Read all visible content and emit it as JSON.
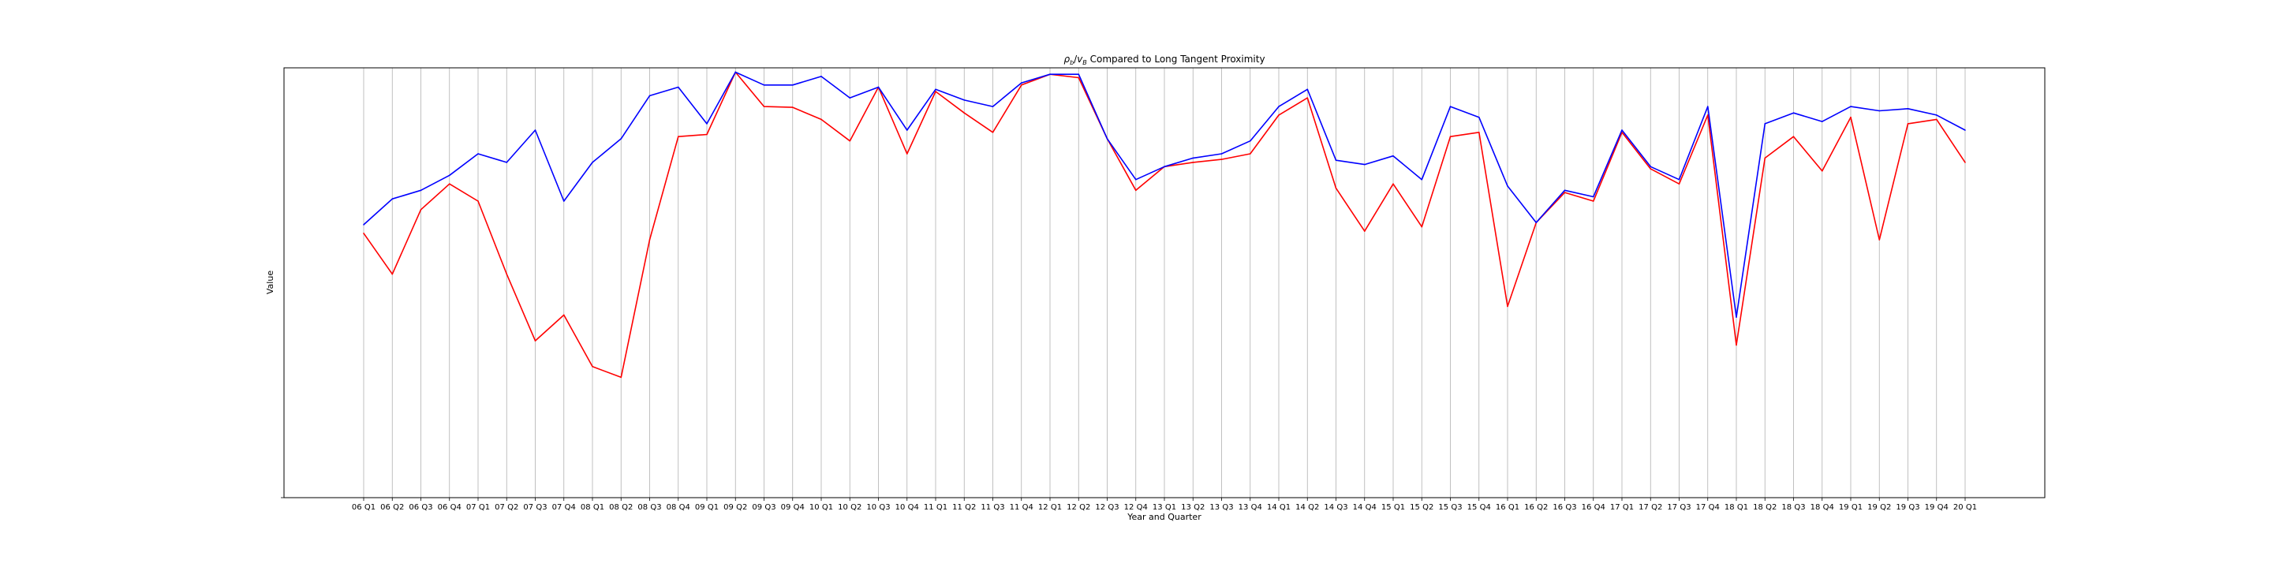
{
  "chart_data": {
    "type": "line",
    "title": "ρ_b/v_b Compared to Long Tangent Proximity",
    "title_parts": {
      "rho": "ρ",
      "rho_sub": "b",
      "slash": "/",
      "v": "v",
      "v_sub": "B",
      "rest": " Compared to Long Tangent Proximity"
    },
    "xlabel": "Year and Quarter",
    "ylabel": "Value",
    "grid": "vertical",
    "legend": "none",
    "y_tick_labels": "hidden",
    "ylim": [
      0,
      1
    ],
    "categories": [
      "06 Q1",
      "06 Q2",
      "06 Q3",
      "06 Q4",
      "07 Q1",
      "07 Q2",
      "07 Q3",
      "07 Q4",
      "08 Q1",
      "08 Q2",
      "08 Q3",
      "08 Q4",
      "09 Q1",
      "09 Q2",
      "09 Q3",
      "09 Q4",
      "10 Q1",
      "10 Q2",
      "10 Q3",
      "10 Q4",
      "11 Q1",
      "11 Q2",
      "11 Q3",
      "11 Q4",
      "12 Q1",
      "12 Q2",
      "12 Q3",
      "12 Q4",
      "13 Q1",
      "13 Q2",
      "13 Q3",
      "13 Q4",
      "14 Q1",
      "14 Q2",
      "14 Q3",
      "14 Q4",
      "15 Q1",
      "15 Q2",
      "15 Q3",
      "15 Q4",
      "16 Q1",
      "16 Q2",
      "16 Q3",
      "16 Q4",
      "17 Q1",
      "17 Q2",
      "17 Q3",
      "17 Q4",
      "18 Q1",
      "18 Q2",
      "18 Q3",
      "18 Q4",
      "19 Q1",
      "19 Q2",
      "19 Q3",
      "19 Q4",
      "20 Q1"
    ],
    "series": [
      {
        "color": "#ff0000",
        "values": [
          0.615,
          0.52,
          0.67,
          0.73,
          0.69,
          0.52,
          0.365,
          0.425,
          0.305,
          0.28,
          0.6,
          0.84,
          0.845,
          0.99,
          0.91,
          0.908,
          0.88,
          0.83,
          0.955,
          0.8,
          0.945,
          0.895,
          0.85,
          0.96,
          0.985,
          0.977,
          0.835,
          0.715,
          0.77,
          0.78,
          0.787,
          0.8,
          0.89,
          0.93,
          0.72,
          0.62,
          0.73,
          0.63,
          0.84,
          0.85,
          0.445,
          0.64,
          0.71,
          0.69,
          0.85,
          0.765,
          0.73,
          0.89,
          0.355,
          0.79,
          0.84,
          0.76,
          0.885,
          0.6,
          0.87,
          0.88,
          0.78
        ]
      },
      {
        "color": "#0000ff",
        "values": [
          0.635,
          0.695,
          0.715,
          0.75,
          0.8,
          0.78,
          0.855,
          0.69,
          0.78,
          0.835,
          0.935,
          0.955,
          0.87,
          0.99,
          0.96,
          0.96,
          0.98,
          0.93,
          0.955,
          0.855,
          0.95,
          0.925,
          0.91,
          0.965,
          0.985,
          0.985,
          0.835,
          0.74,
          0.77,
          0.79,
          0.8,
          0.83,
          0.91,
          0.95,
          0.785,
          0.775,
          0.795,
          0.74,
          0.91,
          0.885,
          0.725,
          0.64,
          0.715,
          0.7,
          0.855,
          0.77,
          0.74,
          0.91,
          0.42,
          0.87,
          0.895,
          0.875,
          0.91,
          0.9,
          0.905,
          0.89,
          0.855
        ]
      }
    ]
  }
}
